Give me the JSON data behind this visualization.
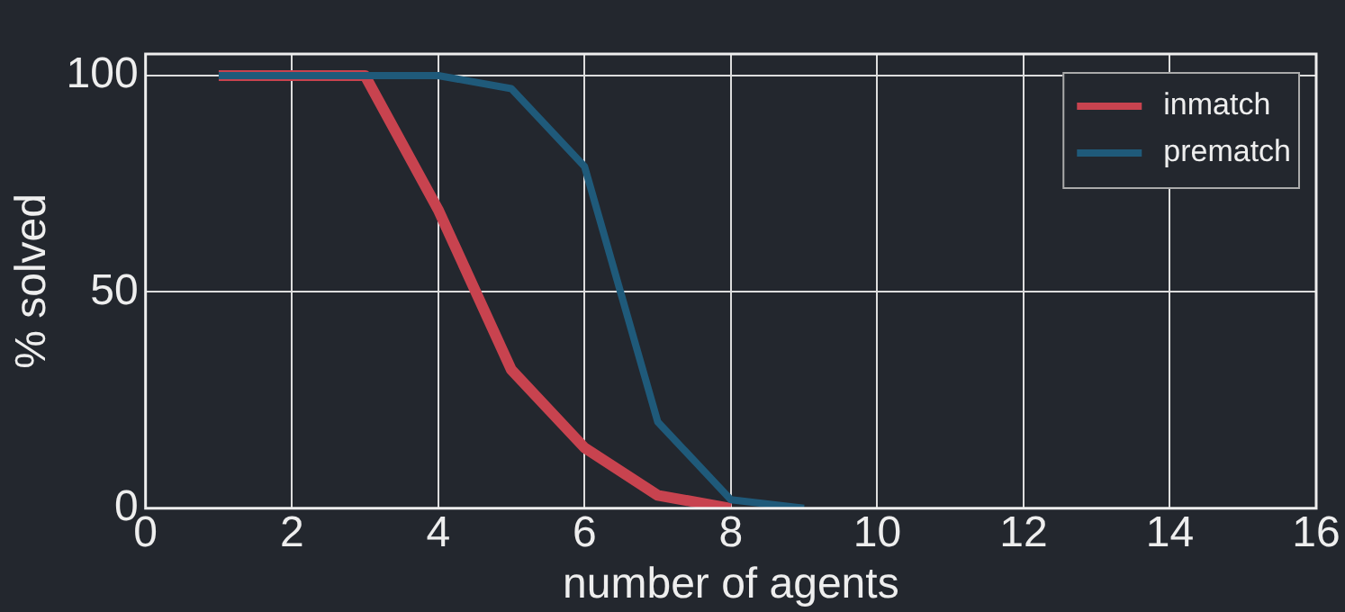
{
  "chart_data": {
    "type": "line",
    "xlabel": "number of agents",
    "ylabel": "% solved",
    "series": [
      {
        "name": "inmatch",
        "color": "#c8434f",
        "x": [
          1,
          2,
          3,
          4,
          5,
          6,
          7,
          8
        ],
        "values": [
          100,
          100,
          100,
          69,
          32,
          14,
          3,
          0
        ]
      },
      {
        "name": "prematch",
        "color": "#1f5a7a",
        "x": [
          1,
          2,
          3,
          4,
          5,
          6,
          7,
          8,
          9
        ],
        "values": [
          100,
          100,
          100,
          100,
          97,
          79,
          20,
          2,
          0
        ]
      }
    ],
    "xlim": [
      0,
      16
    ],
    "xticks": [
      0,
      2,
      4,
      6,
      8,
      10,
      12,
      14,
      16
    ],
    "ylim": [
      0,
      105
    ],
    "yticks": [
      0,
      50,
      100
    ],
    "grid": true,
    "legend": "top right",
    "marker": "none",
    "line_style": "solid"
  }
}
